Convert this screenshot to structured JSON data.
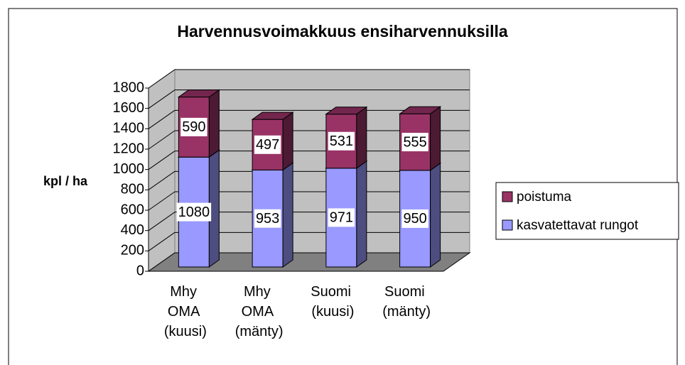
{
  "chart_data": {
    "type": "bar3d_stacked",
    "title": "Harvennusvoimakkuus ensiharvennuksilla",
    "ylabel": "kpl / ha",
    "categories": [
      "Mhy OMA (kuusi)",
      "Mhy OMA (mänty)",
      "Suomi (kuusi)",
      "Suomi (mänty)"
    ],
    "series": [
      {
        "name": "kasvatettavat rungot",
        "color": "#9999ff",
        "values": [
          1080,
          953,
          971,
          950
        ]
      },
      {
        "name": "poistuma",
        "color": "#993366",
        "values": [
          590,
          497,
          531,
          555
        ]
      }
    ],
    "ylim": [
      0,
      1800
    ],
    "yticks": [
      0,
      200,
      400,
      600,
      800,
      1000,
      1200,
      1400,
      1600,
      1800
    ],
    "grid": true,
    "legend": "right"
  }
}
